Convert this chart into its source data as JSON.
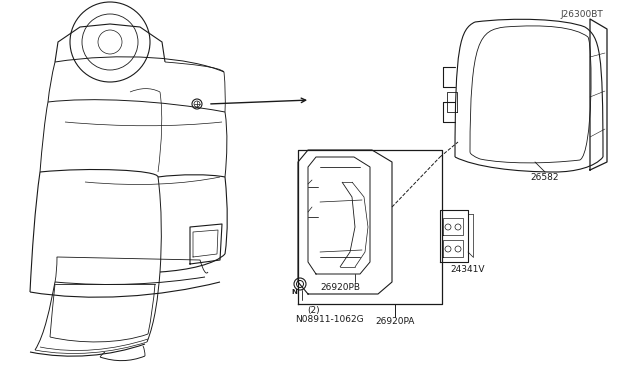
{
  "bg_color": "#ffffff",
  "line_color": "#1a1a1a",
  "diagram_code": "J26300BT",
  "figsize": [
    6.4,
    3.72
  ],
  "dpi": 100,
  "labels": {
    "part_N": "N08911-1062G",
    "part_N2": "(2)",
    "part_26920PA": "26920PA",
    "part_26920PB": "26920PB",
    "part_24341V": "24341V",
    "part_26582": "26582",
    "code": "J26300BT"
  }
}
